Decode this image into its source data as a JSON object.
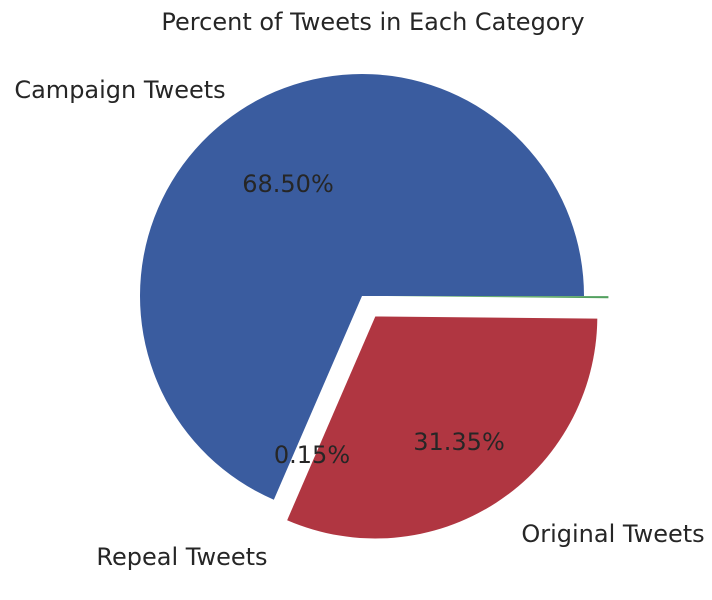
{
  "chart_data": {
    "type": "pie",
    "title": "Percent of Tweets in Each Category",
    "categories": [
      "Campaign Tweets",
      "Original Tweets",
      "Repeal Tweets"
    ],
    "values": [
      68.5,
      31.35,
      0.15
    ],
    "percent_labels": [
      "68.50%",
      "31.35%",
      "0.15%"
    ],
    "colors": [
      "#3a5c9f",
      "#b03641",
      "#53a15f"
    ],
    "exploded": [
      false,
      true,
      true
    ]
  }
}
